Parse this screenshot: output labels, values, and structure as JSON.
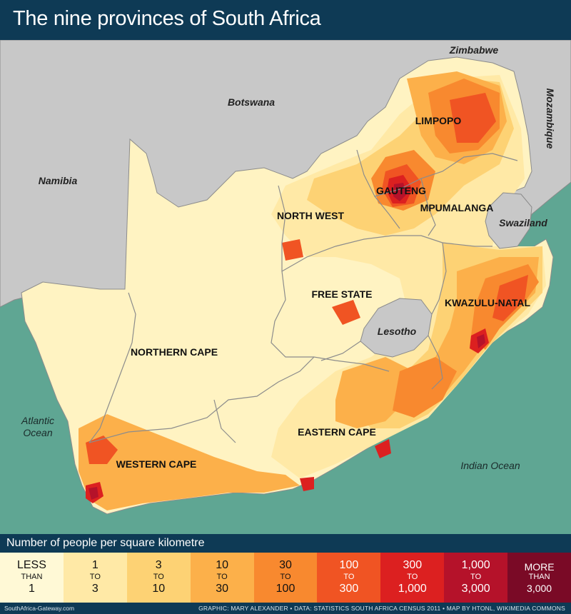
{
  "title": "The nine provinces of South Africa",
  "provinces": [
    {
      "name": "LIMPOPO"
    },
    {
      "name": "GAUTENG"
    },
    {
      "name": "MPUMALANGA"
    },
    {
      "name": "NORTH WEST"
    },
    {
      "name": "FREE STATE"
    },
    {
      "name": "KWAZULU-NATAL"
    },
    {
      "name": "NORTHERN CAPE"
    },
    {
      "name": "EASTERN CAPE"
    },
    {
      "name": "WESTERN CAPE"
    }
  ],
  "countries": {
    "zimbabwe": "Zimbabwe",
    "botswana": "Botswana",
    "mozambique": "Mozambique",
    "namibia": "Namibia",
    "swaziland": "Swaziland",
    "lesotho": "Lesotho"
  },
  "oceans": {
    "atlantic_1": "Atlantic",
    "atlantic_2": "Ocean",
    "indian": "Indian Ocean"
  },
  "legend": {
    "title": "Number of people per square kilometre",
    "bins": [
      {
        "a": "LESS",
        "b": "THAN",
        "c": "1",
        "color": "#fff9d6",
        "text": "#111"
      },
      {
        "a": "1",
        "b": "TO",
        "c": "3",
        "color": "#ffe9a6",
        "text": "#111"
      },
      {
        "a": "3",
        "b": "TO",
        "c": "10",
        "color": "#fdd274",
        "text": "#111"
      },
      {
        "a": "10",
        "b": "TO",
        "c": "30",
        "color": "#fcb04a",
        "text": "#111"
      },
      {
        "a": "30",
        "b": "TO",
        "c": "100",
        "color": "#f8892f",
        "text": "#111"
      },
      {
        "a": "100",
        "b": "TO",
        "c": "300",
        "color": "#f05423",
        "text": "#fff"
      },
      {
        "a": "300",
        "b": "TO",
        "c": "1,000",
        "color": "#dc2020",
        "text": "#fff"
      },
      {
        "a": "1,000",
        "b": "TO",
        "c": "3,000",
        "color": "#b5122a",
        "text": "#fff"
      },
      {
        "a": "MORE",
        "b": "THAN",
        "c": "3,000",
        "color": "#7a0a26",
        "text": "#fff"
      }
    ]
  },
  "colors": {
    "sea": "#5fa693",
    "land_neighbour": "#c8c8c8",
    "header": "#0e3a55"
  },
  "footer": {
    "left": "SouthAfrica-Gateway.com",
    "right": "GRAPHIC: MARY ALEXANDER • DATA: STATISTICS SOUTH AFRICA CENSUS 2011 • MAP BY HTONL, WIKIMEDIA COMMONS"
  }
}
